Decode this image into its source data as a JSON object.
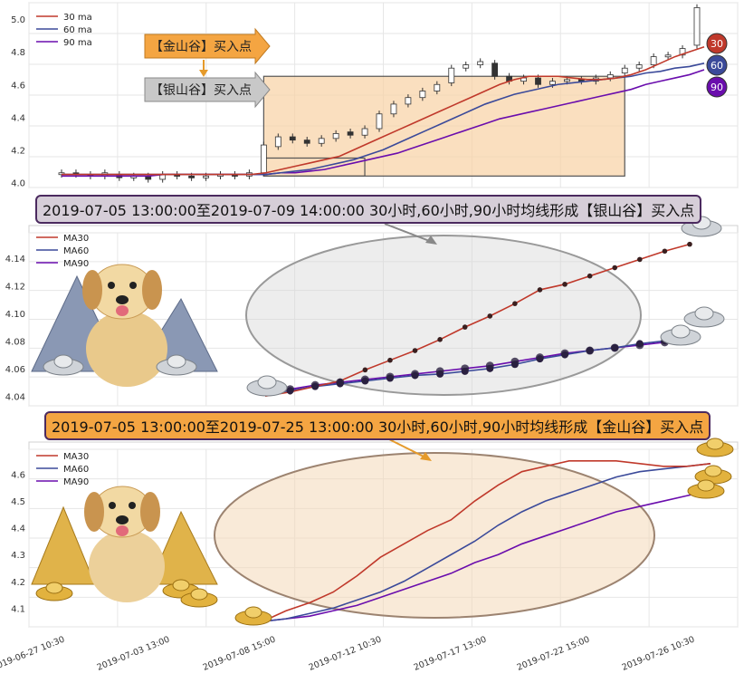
{
  "chart_data": [
    {
      "type": "candlestick",
      "legend": [
        "30 ma",
        "60 ma",
        "90 ma"
      ],
      "yticks": [
        "5.0",
        "4.8",
        "4.6",
        "4.4",
        "4.2",
        "4.0"
      ],
      "ylim": [
        3.97,
        5.1
      ],
      "series_colors": {
        "ma30": "#c0392b",
        "ma60": "#3b4a9a",
        "ma90": "#6a0dad"
      },
      "ma30": [
        4.05,
        4.05,
        4.05,
        4.05,
        4.05,
        4.05,
        4.05,
        4.05,
        4.05,
        4.05,
        4.05,
        4.05,
        4.05,
        4.05,
        4.06,
        4.08,
        4.1,
        4.12,
        4.14,
        4.16,
        4.2,
        4.24,
        4.28,
        4.32,
        4.36,
        4.4,
        4.44,
        4.48,
        4.52,
        4.56,
        4.6,
        4.63,
        4.65,
        4.65,
        4.65,
        4.64,
        4.63,
        4.63,
        4.64,
        4.66,
        4.69,
        4.73,
        4.77,
        4.8,
        4.83
      ],
      "ma60": [
        4.05,
        4.05,
        4.05,
        4.05,
        4.05,
        4.05,
        4.05,
        4.05,
        4.05,
        4.05,
        4.05,
        4.05,
        4.05,
        4.05,
        4.05,
        4.06,
        4.07,
        4.08,
        4.1,
        4.12,
        4.14,
        4.17,
        4.2,
        4.24,
        4.28,
        4.32,
        4.36,
        4.4,
        4.44,
        4.48,
        4.51,
        4.54,
        4.56,
        4.58,
        4.6,
        4.61,
        4.62,
        4.63,
        4.64,
        4.65,
        4.67,
        4.68,
        4.7,
        4.71,
        4.73
      ],
      "ma90": [
        4.04,
        4.04,
        4.04,
        4.04,
        4.04,
        4.04,
        4.04,
        4.05,
        4.05,
        4.05,
        4.05,
        4.05,
        4.05,
        4.05,
        4.05,
        4.06,
        4.06,
        4.07,
        4.08,
        4.1,
        4.12,
        4.14,
        4.16,
        4.18,
        4.21,
        4.24,
        4.27,
        4.3,
        4.33,
        4.36,
        4.39,
        4.41,
        4.43,
        4.45,
        4.47,
        4.49,
        4.51,
        4.53,
        4.55,
        4.57,
        4.6,
        4.62,
        4.64,
        4.66,
        4.69
      ],
      "close": [
        4.06,
        4.05,
        4.04,
        4.06,
        4.03,
        4.04,
        4.02,
        4.05,
        4.04,
        4.03,
        4.04,
        4.05,
        4.04,
        4.06,
        4.23,
        4.28,
        4.26,
        4.24,
        4.27,
        4.3,
        4.29,
        4.33,
        4.42,
        4.48,
        4.52,
        4.56,
        4.6,
        4.7,
        4.72,
        4.74,
        4.65,
        4.62,
        4.64,
        4.6,
        4.62,
        4.63,
        4.62,
        4.64,
        4.66,
        4.7,
        4.72,
        4.77,
        4.78,
        4.82,
        5.07
      ],
      "open": [
        4.05,
        4.06,
        4.05,
        4.04,
        4.05,
        4.03,
        4.04,
        4.02,
        4.05,
        4.04,
        4.03,
        4.04,
        4.05,
        4.04,
        4.06,
        4.22,
        4.28,
        4.26,
        4.24,
        4.27,
        4.31,
        4.29,
        4.33,
        4.42,
        4.48,
        4.52,
        4.56,
        4.61,
        4.7,
        4.72,
        4.73,
        4.65,
        4.62,
        4.64,
        4.6,
        4.62,
        4.63,
        4.62,
        4.64,
        4.67,
        4.7,
        4.72,
        4.77,
        4.78,
        4.84
      ],
      "boxes": [
        {
          "label": "【金山谷】买入点",
          "x0": 14,
          "x1": 39,
          "y0": 4.04,
          "y1": 4.65,
          "color": "#f4a542"
        },
        {
          "label": "【银山谷】买入点",
          "x0": 14,
          "x1": 21,
          "y0": 4.04,
          "y1": 4.15,
          "color": "#f4a542"
        }
      ],
      "badges": [
        "30",
        "60",
        "90"
      ],
      "badge_colors": [
        "#c0392b",
        "#3b4a9a",
        "#6a0dad"
      ],
      "arrow_labels": [
        "【金山谷】买入点",
        "【银山谷】买入点"
      ]
    },
    {
      "type": "line",
      "banner": "2019-07-05 13:00:00至2019-07-09 14:00:00 30小时,60小时,90小时均线形成【银山谷】买入点",
      "legend": [
        "MA30",
        "MA60",
        "MA90"
      ],
      "yticks": [
        "4.14",
        "4.12",
        "4.10",
        "4.08",
        "4.06",
        "4.04"
      ],
      "ylim": [
        4.033,
        4.155
      ],
      "ma30": [
        4.04,
        4.043,
        4.047,
        4.051,
        4.059,
        4.066,
        4.073,
        4.081,
        4.09,
        4.098,
        4.107,
        4.117,
        4.121,
        4.127,
        4.133,
        4.139,
        4.145,
        4.15
      ],
      "ma60": [
        4.041,
        4.044,
        4.047,
        4.049,
        4.051,
        4.053,
        4.055,
        4.056,
        4.058,
        4.06,
        4.063,
        4.067,
        4.07,
        4.073,
        4.075,
        4.078,
        4.08,
        4.082
      ],
      "ma90": [
        4.042,
        4.045,
        4.048,
        4.05,
        4.052,
        4.054,
        4.056,
        4.058,
        4.06,
        4.062,
        4.065,
        4.068,
        4.071,
        4.073,
        4.075,
        4.077,
        4.079,
        4.082
      ]
    },
    {
      "type": "line",
      "banner": "2019-07-05 13:00:00至2019-07-25 13:00:00 30小时,60小时,90小时均线形成【金山谷】买入点",
      "legend": [
        "MA30",
        "MA60",
        "MA90"
      ],
      "yticks": [
        "4.6",
        "4.5",
        "4.4",
        "4.3",
        "4.2",
        "4.1"
      ],
      "ylim": [
        4.03,
        4.68
      ],
      "ma30": [
        4.05,
        4.09,
        4.12,
        4.16,
        4.22,
        4.29,
        4.34,
        4.39,
        4.43,
        4.5,
        4.56,
        4.61,
        4.63,
        4.65,
        4.65,
        4.65,
        4.64,
        4.63,
        4.63,
        4.64
      ],
      "ma60": [
        4.05,
        4.06,
        4.08,
        4.1,
        4.13,
        4.16,
        4.2,
        4.25,
        4.3,
        4.35,
        4.41,
        4.46,
        4.5,
        4.53,
        4.56,
        4.59,
        4.61,
        4.62,
        4.63,
        4.64
      ],
      "ma90": [
        4.05,
        4.06,
        4.07,
        4.09,
        4.11,
        4.14,
        4.17,
        4.2,
        4.23,
        4.27,
        4.3,
        4.34,
        4.37,
        4.4,
        4.43,
        4.46,
        4.48,
        4.5,
        4.52,
        4.54
      ],
      "xticks": [
        "2019-06-27 10:30",
        "2019-07-03 13:00",
        "2019-07-08 15:00",
        "2019-07-12 10:30",
        "2019-07-17 13:00",
        "2019-07-22 15:00",
        "2019-07-26 10:30"
      ]
    }
  ]
}
